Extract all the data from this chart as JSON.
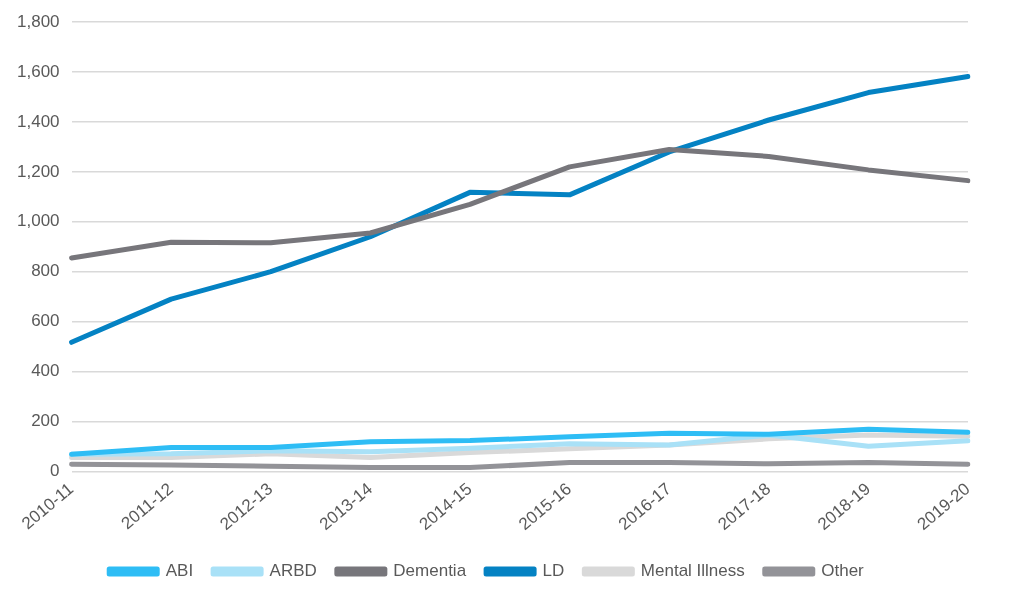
{
  "chart_data": {
    "type": "line",
    "categories": [
      "2010-11",
      "2011-12",
      "2012-13",
      "2013-14",
      "2014-15",
      "2015-16",
      "2016-17",
      "2017-18",
      "2018-19",
      "2019-20"
    ],
    "series": [
      {
        "name": "ABI",
        "color": "#2ebdf5",
        "values": [
          68,
          95,
          95,
          118,
          123,
          138,
          152,
          148,
          168,
          156
        ]
      },
      {
        "name": "ARBD",
        "color": "#a9e1f7",
        "values": [
          68,
          70,
          82,
          78,
          92,
          110,
          105,
          145,
          100,
          122
        ]
      },
      {
        "name": "Dementia",
        "color": "#77767b",
        "values": [
          855,
          918,
          916,
          955,
          1070,
          1220,
          1290,
          1262,
          1208,
          1165
        ]
      },
      {
        "name": "LD",
        "color": "#0482c3",
        "values": [
          517,
          690,
          800,
          940,
          1118,
          1108,
          1280,
          1408,
          1518,
          1582
        ]
      },
      {
        "name": "Mental Illness",
        "color": "#d9d9d9",
        "values": [
          55,
          55,
          70,
          55,
          75,
          90,
          105,
          130,
          145,
          140
        ]
      },
      {
        "name": "Other",
        "color": "#939398",
        "values": [
          28,
          25,
          20,
          15,
          15,
          35,
          35,
          30,
          35,
          28
        ]
      }
    ],
    "ylim": [
      0,
      1800
    ],
    "yticks": [
      {
        "value": 0,
        "label": "0"
      },
      {
        "value": 200,
        "label": "200"
      },
      {
        "value": 400,
        "label": "400"
      },
      {
        "value": 600,
        "label": "600"
      },
      {
        "value": 800,
        "label": "800"
      },
      {
        "value": 1000,
        "label": "1,000"
      },
      {
        "value": 1200,
        "label": "1,200"
      },
      {
        "value": 1400,
        "label": "1,400"
      },
      {
        "value": 1600,
        "label": "1,600"
      },
      {
        "value": 1800,
        "label": "1,800"
      }
    ],
    "grid": "y",
    "legend": "bottom",
    "marker": "none",
    "line_style": "solid"
  }
}
